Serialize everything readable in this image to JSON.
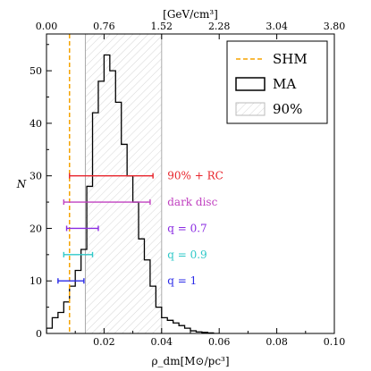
{
  "chart_data": {
    "type": "histogram",
    "xlabel": "ρ_dm[M⊙/pc³]",
    "ylabel": "N",
    "top_xlabel": "[GeV/cm³]",
    "xlim": [
      0.0,
      0.1
    ],
    "ylim": [
      0,
      57
    ],
    "x_ticks": [
      "0.02",
      "0.04",
      "0.06",
      "0.08",
      "0.10"
    ],
    "y_ticks": [
      "0",
      "10",
      "20",
      "30",
      "40",
      "50"
    ],
    "top_x_ticks": [
      "0.00",
      "0.76",
      "1.52",
      "2.28",
      "3.04",
      "3.80"
    ],
    "histogram": {
      "name": "MA",
      "bin_edges": [
        0.0,
        0.002,
        0.004,
        0.006,
        0.008,
        0.01,
        0.012,
        0.014,
        0.016,
        0.018,
        0.02,
        0.022,
        0.024,
        0.026,
        0.028,
        0.03,
        0.032,
        0.034,
        0.036,
        0.038,
        0.04,
        0.042,
        0.044,
        0.046,
        0.048,
        0.05,
        0.052,
        0.054,
        0.056,
        0.058,
        0.06
      ],
      "counts": [
        1,
        3,
        4,
        6,
        9,
        12,
        16,
        28,
        42,
        48,
        53,
        50,
        44,
        36,
        30,
        25,
        18,
        14,
        9,
        5,
        3,
        2.5,
        2,
        1.5,
        1,
        0.5,
        0.3,
        0.2,
        0.1,
        0
      ]
    },
    "shm_line": {
      "name": "SHM",
      "x": 0.008,
      "color": "#f5a300"
    },
    "band_90": {
      "name": "90%",
      "x_range": [
        0.0135,
        0.04
      ]
    },
    "error_bars": [
      {
        "label": "90% + RC",
        "y": 30,
        "xmin": 0.008,
        "xmax": 0.037,
        "color": "#e8232a"
      },
      {
        "label": "dark disc",
        "y": 25,
        "xmin": 0.006,
        "xmax": 0.036,
        "color": "#c040c0"
      },
      {
        "label": "q = 0.7",
        "y": 20,
        "xmin": 0.007,
        "xmax": 0.018,
        "color": "#8a2be2"
      },
      {
        "label": "q = 0.9",
        "y": 15,
        "xmin": 0.006,
        "xmax": 0.016,
        "color": "#2ec8c8"
      },
      {
        "label": "q = 1",
        "y": 10,
        "xmin": 0.004,
        "xmax": 0.013,
        "color": "#2a2ae8"
      }
    ],
    "legend": {
      "placement": "top-right",
      "entries": [
        {
          "label": "SHM",
          "style": "dashed-line",
          "color": "#f5a300"
        },
        {
          "label": "MA",
          "style": "box",
          "color": "#000000"
        },
        {
          "label": "90%",
          "style": "hatched-box",
          "color": "#bbbbbb"
        }
      ]
    }
  }
}
